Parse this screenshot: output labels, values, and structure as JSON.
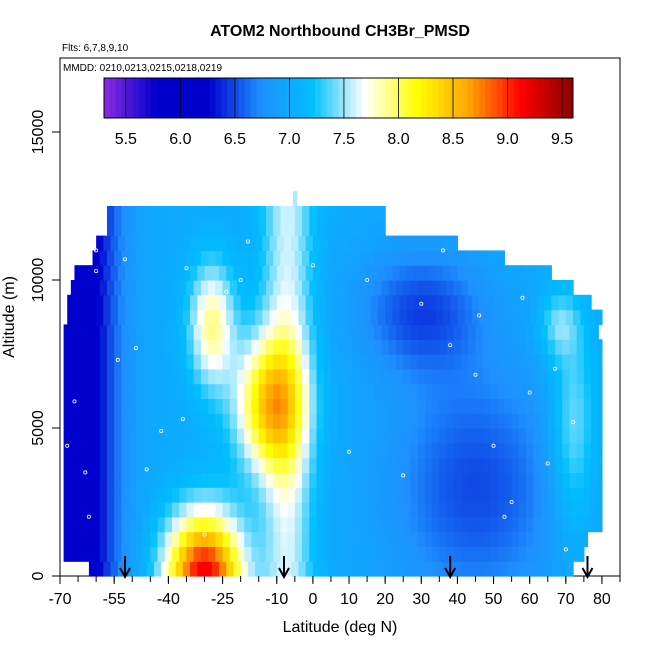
{
  "chart_data": {
    "type": "heatmap",
    "title": "ATOM2 Northbound CH3Br_PMSD",
    "subtitle_flights": "Flts: 6,7,8,9,10",
    "subtitle_dates": "MMDD: 0210,0213,0215,0218,0219",
    "xlabel": "Latitude (deg N)",
    "ylabel": "Altitude (m)",
    "xlim": [
      -70,
      85
    ],
    "ylim": [
      0,
      17500
    ],
    "x_ticks": [
      -70,
      -55,
      -40,
      -25,
      -10,
      0,
      10,
      20,
      30,
      40,
      50,
      60,
      70,
      80
    ],
    "y_ticks": [
      0,
      5000,
      10000,
      15000
    ],
    "colorbar": {
      "min": 5.3,
      "max": 9.6,
      "tick_values": [
        5.5,
        6.0,
        6.5,
        7.0,
        7.5,
        8.0,
        8.5,
        9.0,
        9.5
      ],
      "tick_labels": [
        "5.5",
        "6.0",
        "6.5",
        "7.0",
        "7.5",
        "8.0",
        "8.5",
        "9.0",
        "9.5"
      ],
      "colors": [
        "#8a2be2",
        "#0000cd",
        "#0000cd",
        "#1e90ff",
        "#00bfff",
        "#ffffff",
        "#ffff00",
        "#ffa500",
        "#ff0000",
        "#8b0000"
      ]
    },
    "arrow_latitudes": [
      -52,
      -8,
      38,
      76
    ],
    "field_description": "CH3Br values 5.5-9.5 across latitude and altitude; high values near -30..-10 lat below 6000 m, low values toward -65 lat"
  }
}
